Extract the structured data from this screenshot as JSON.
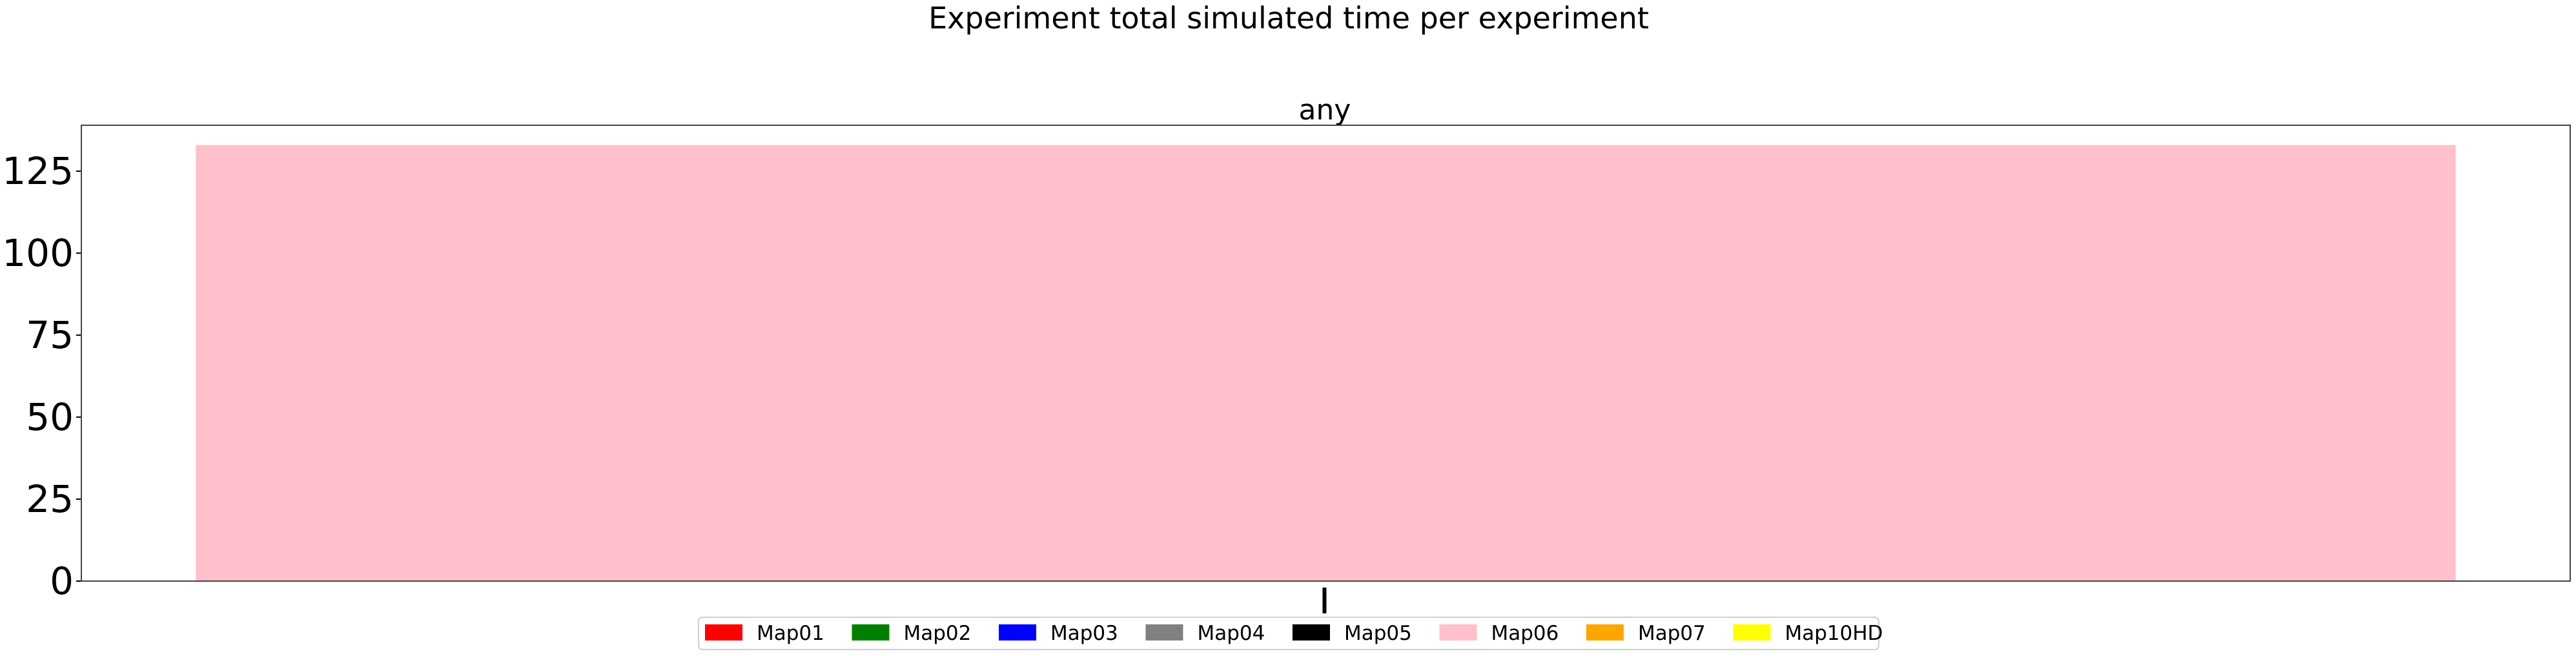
{
  "chart_data": {
    "type": "bar",
    "title": "Experiment total simulated time per experiment",
    "subplot_title": "any",
    "xlabel": "",
    "ylabel": "",
    "categories": [
      ""
    ],
    "ylim": [
      0,
      139
    ],
    "yticks": [
      0,
      25,
      50,
      75,
      100,
      125
    ],
    "grid": false,
    "legend_placement": "bottom-center",
    "series": [
      {
        "name": "Map01",
        "color": "#ff0000",
        "values": [
          0
        ]
      },
      {
        "name": "Map02",
        "color": "#008000",
        "values": [
          0
        ]
      },
      {
        "name": "Map03",
        "color": "#0000ff",
        "values": [
          0
        ]
      },
      {
        "name": "Map04",
        "color": "#808080",
        "values": [
          0
        ]
      },
      {
        "name": "Map05",
        "color": "#000000",
        "values": [
          0
        ]
      },
      {
        "name": "Map06",
        "color": "#ffc0cb",
        "values": [
          133
        ]
      },
      {
        "name": "Map07",
        "color": "#ffa500",
        "values": [
          0
        ]
      },
      {
        "name": "Map10HD",
        "color": "#ffff00",
        "values": [
          0
        ]
      }
    ]
  }
}
